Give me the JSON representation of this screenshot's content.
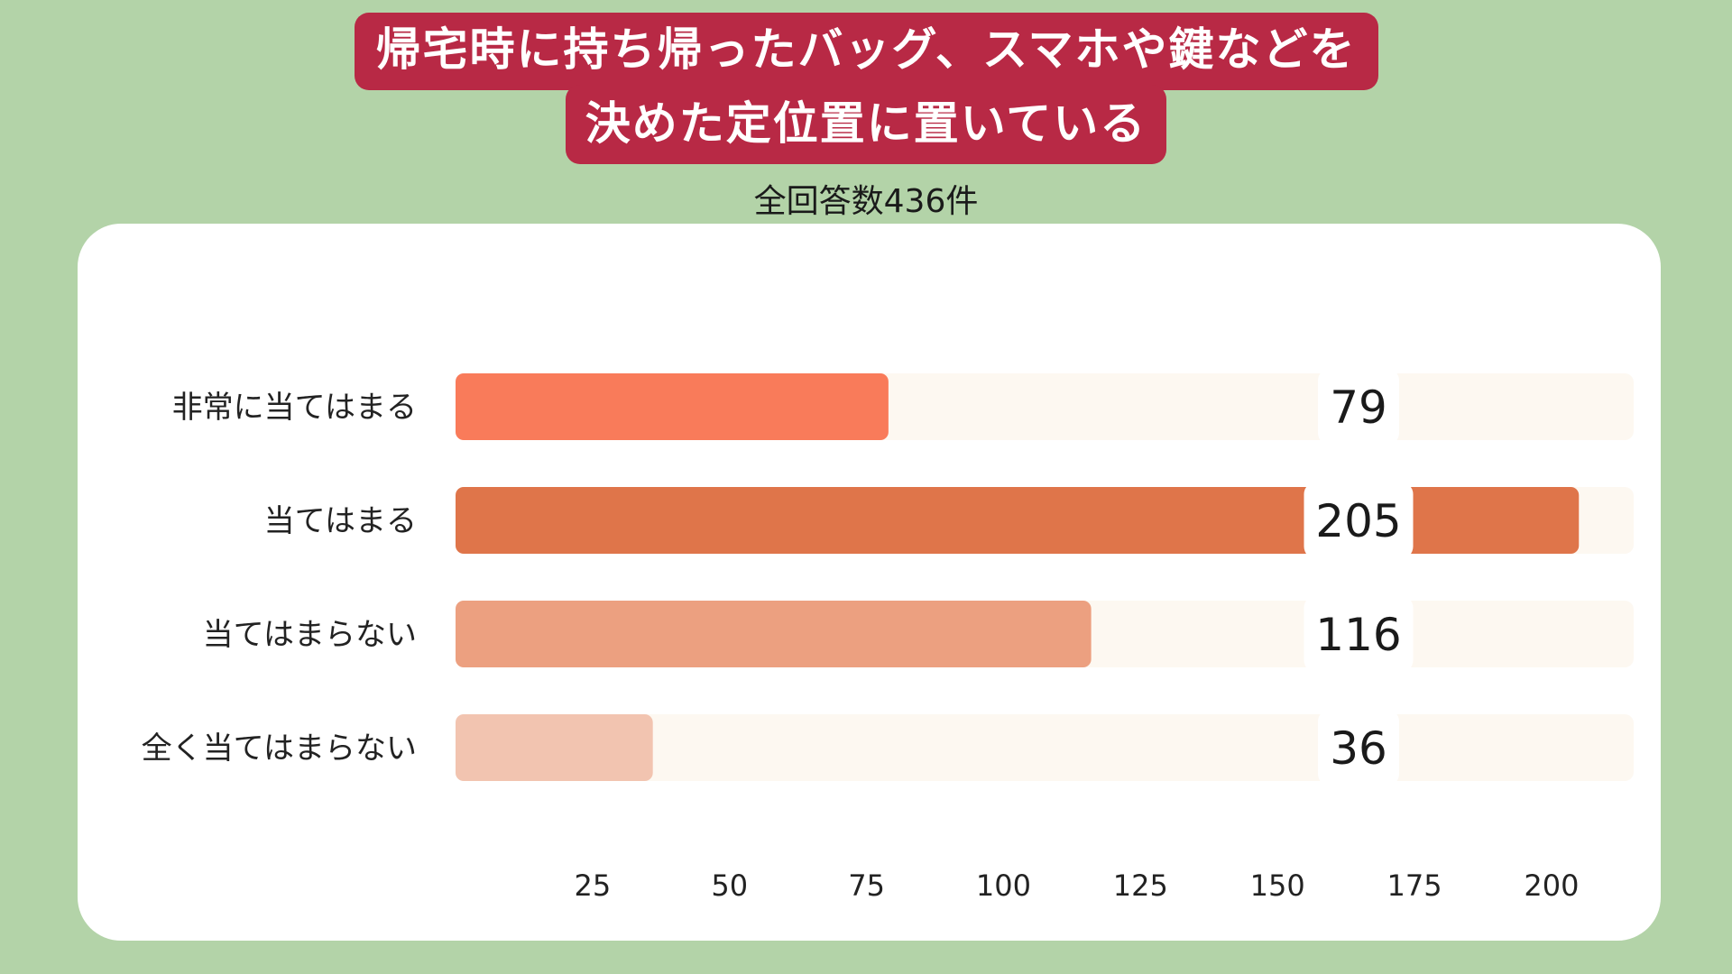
{
  "title": {
    "line1": "帰宅時に持ち帰ったバッグ、スマホや鍵などを",
    "line2": "決めた定位置に置いている"
  },
  "subtitle": "全回答数436件",
  "chart_data": {
    "type": "bar",
    "orientation": "horizontal",
    "categories": [
      "非常に当てはまる",
      "当てはまる",
      "当てはまらない",
      "全く当てはまらない"
    ],
    "values": [
      79,
      205,
      116,
      36
    ],
    "xticks": [
      25,
      50,
      75,
      100,
      125,
      150,
      175,
      200
    ],
    "xlim": [
      0,
      215
    ],
    "grid": false,
    "colors": [
      "#f97b5a",
      "#df754a",
      "#eca080",
      "#f2c4b0"
    ],
    "track_color": "#fdf8f1",
    "background": "#b3d3a8",
    "title_color": "#b82945"
  }
}
